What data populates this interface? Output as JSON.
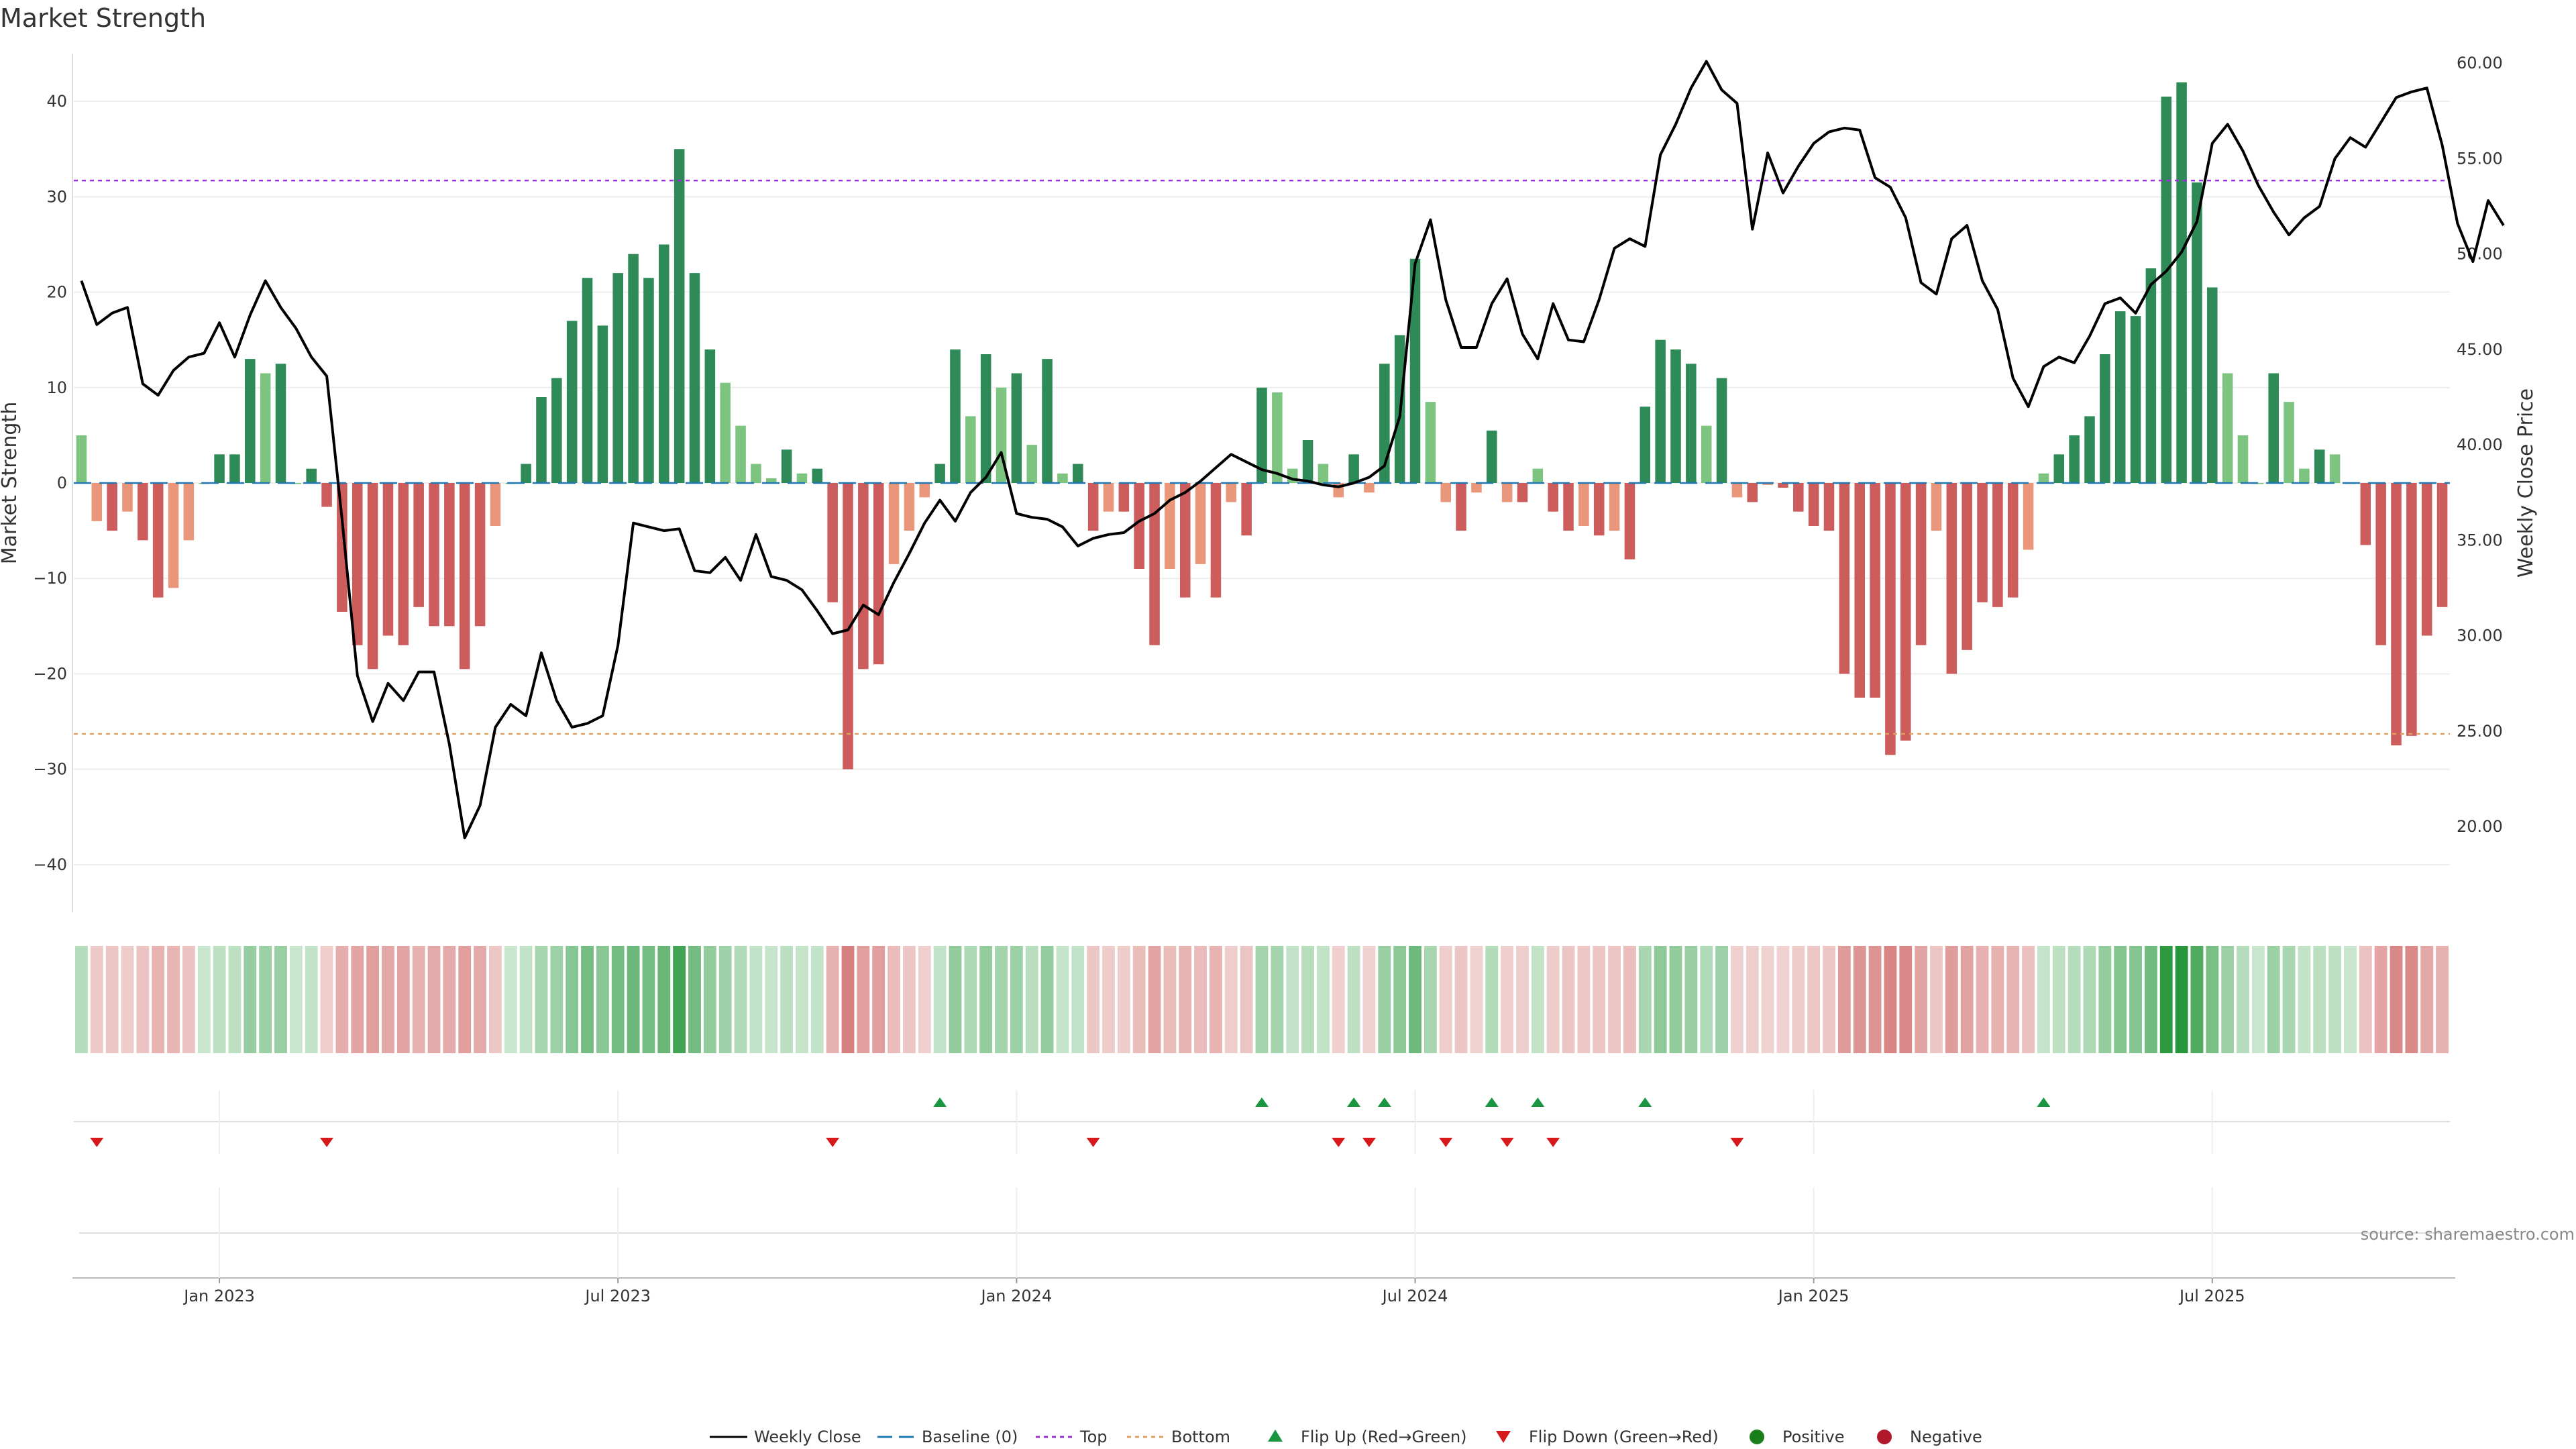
{
  "title": "Market Strength",
  "source": "source: sharemaestro.com",
  "colors": {
    "dark_green": "#2e8b57",
    "light_green": "#7cc47f",
    "dark_red": "#cd5c5c",
    "light_red": "#e9967a",
    "close_line": "#000000",
    "baseline": "#1f77b4",
    "top": "#9b30d9",
    "bottom": "#e0a060",
    "flip_up": "#1a9641",
    "flip_down": "#d7191c",
    "positive": "#1a7f1a",
    "negative": "#b2182b"
  },
  "chart_data": {
    "type": "bar",
    "y_left": {
      "label": "Market Strength",
      "ylim": [
        -45,
        45
      ],
      "ticks": [
        "40",
        "30",
        "20",
        "10",
        "0",
        "−10",
        "−20",
        "−30",
        "−40"
      ]
    },
    "y_right": {
      "label": "Weekly Close Price",
      "ylim": [
        15.5,
        60.5
      ],
      "ticks": [
        "60.00",
        "55.00",
        "50.00",
        "45.00",
        "40.00",
        "35.00",
        "30.00",
        "25.00",
        "20.00"
      ]
    },
    "x_ticks": [
      "Jan 2023",
      "Jul 2023",
      "Jan 2024",
      "Jul 2024",
      "Jan 2025",
      "Jul 2025"
    ],
    "x_tick_weeks": [
      9,
      35,
      61,
      87,
      113,
      139
    ],
    "top_level": 31.7,
    "bottom_level": -26.3,
    "strength": [
      5,
      -4,
      -5,
      -3,
      -6,
      -12,
      -11,
      -6,
      0,
      3,
      3,
      13,
      11.5,
      12.5,
      0,
      1.5,
      -2.5,
      -13.5,
      -17,
      -19.5,
      -16,
      -17,
      -13,
      -15,
      -15,
      -19.5,
      -15,
      -4.5,
      0,
      2,
      9,
      11,
      17,
      21.5,
      16.5,
      22,
      24,
      21.5,
      25,
      35,
      22,
      14,
      10.5,
      6,
      2,
      0.5,
      3.5,
      1,
      1.5,
      -12.5,
      -30,
      -19.5,
      -19,
      -8.5,
      -5,
      -1.5,
      2,
      14,
      7,
      13.5,
      10,
      11.5,
      4,
      13,
      1,
      2,
      -5,
      -3,
      -3,
      -9,
      -17,
      -9,
      -12,
      -8.5,
      -12,
      -2,
      -5.5,
      10,
      9.5,
      1.5,
      4.5,
      2,
      -1.5,
      3,
      -1,
      12.5,
      15.5,
      23.5,
      8.5,
      -2,
      -5,
      -1,
      5.5,
      -2,
      -2,
      1.5,
      -3,
      -5,
      -4.5,
      -5.5,
      -5,
      -8,
      8,
      15,
      14,
      12.5,
      6,
      11,
      -1.5,
      -2,
      -0.2,
      -0.5,
      -3,
      -4.5,
      -5,
      -20,
      -22.5,
      -22.5,
      -28.5,
      -27,
      -17,
      -5,
      -20,
      -17.5,
      -12.5,
      -13,
      -12,
      -7,
      1,
      3,
      5,
      7,
      13.5,
      18,
      17.5,
      22.5,
      40.5,
      42,
      31.5,
      20.5,
      11.5,
      5,
      0,
      11.5,
      8.5,
      1.5,
      3.5,
      3,
      0,
      -6.5,
      -17,
      -27.5,
      -26.5,
      -16,
      -13
    ],
    "weekly_close": [
      48.6,
      46.3,
      46.9,
      47.2,
      43.2,
      42.6,
      43.9,
      44.6,
      44.8,
      46.4,
      44.6,
      46.8,
      48.6,
      47.2,
      46.1,
      44.6,
      43.6,
      36.1,
      27.9,
      25.5,
      27.5,
      26.6,
      28.1,
      28.1,
      24.3,
      19.4,
      21.1,
      25.2,
      26.4,
      25.8,
      29.1,
      26.6,
      25.2,
      25.4,
      25.8,
      29.5,
      35.9,
      35.7,
      35.5,
      35.6,
      33.4,
      33.3,
      34.1,
      32.9,
      35.3,
      33.1,
      32.9,
      32.4,
      31.3,
      30.1,
      30.3,
      31.6,
      31.1,
      32.8,
      34.3,
      35.9,
      37.1,
      36.0,
      37.5,
      38.3,
      39.6,
      36.4,
      36.2,
      36.1,
      35.7,
      34.7,
      35.1,
      35.3,
      35.4,
      36.0,
      36.4,
      37.1,
      37.5,
      38.1,
      38.8,
      39.5,
      39.1,
      38.7,
      38.5,
      38.2,
      38.1,
      37.9,
      37.8,
      38.0,
      38.3,
      38.9,
      41.5,
      49.5,
      51.8,
      47.6,
      45.1,
      45.1,
      47.4,
      48.7,
      45.8,
      44.5,
      47.4,
      45.5,
      45.4,
      47.6,
      50.3,
      50.8,
      50.4,
      55.2,
      56.8,
      58.7,
      60.1,
      58.6,
      57.9,
      51.3,
      55.3,
      53.2,
      54.6,
      55.8,
      56.4,
      56.6,
      56.5,
      54.0,
      53.5,
      51.9,
      48.5,
      47.9,
      50.8,
      51.5,
      48.6,
      47.1,
      43.5,
      42.0,
      44.1,
      44.6,
      44.3,
      45.7,
      47.4,
      47.7,
      46.9,
      48.4,
      49.1,
      50.1,
      51.7,
      55.8,
      56.8,
      55.4,
      53.6,
      52.2,
      51.0,
      51.9,
      52.5,
      55.0,
      56.1,
      55.6,
      56.9,
      58.2,
      58.5,
      58.7,
      55.7,
      51.6,
      49.6,
      52.8,
      51.5
    ],
    "legend": [
      "Weekly Close",
      "Baseline (0)",
      "Top",
      "Bottom",
      "Flip Up (Red→Green)",
      "Flip Down (Green→Red)",
      "Positive",
      "Negative"
    ]
  }
}
